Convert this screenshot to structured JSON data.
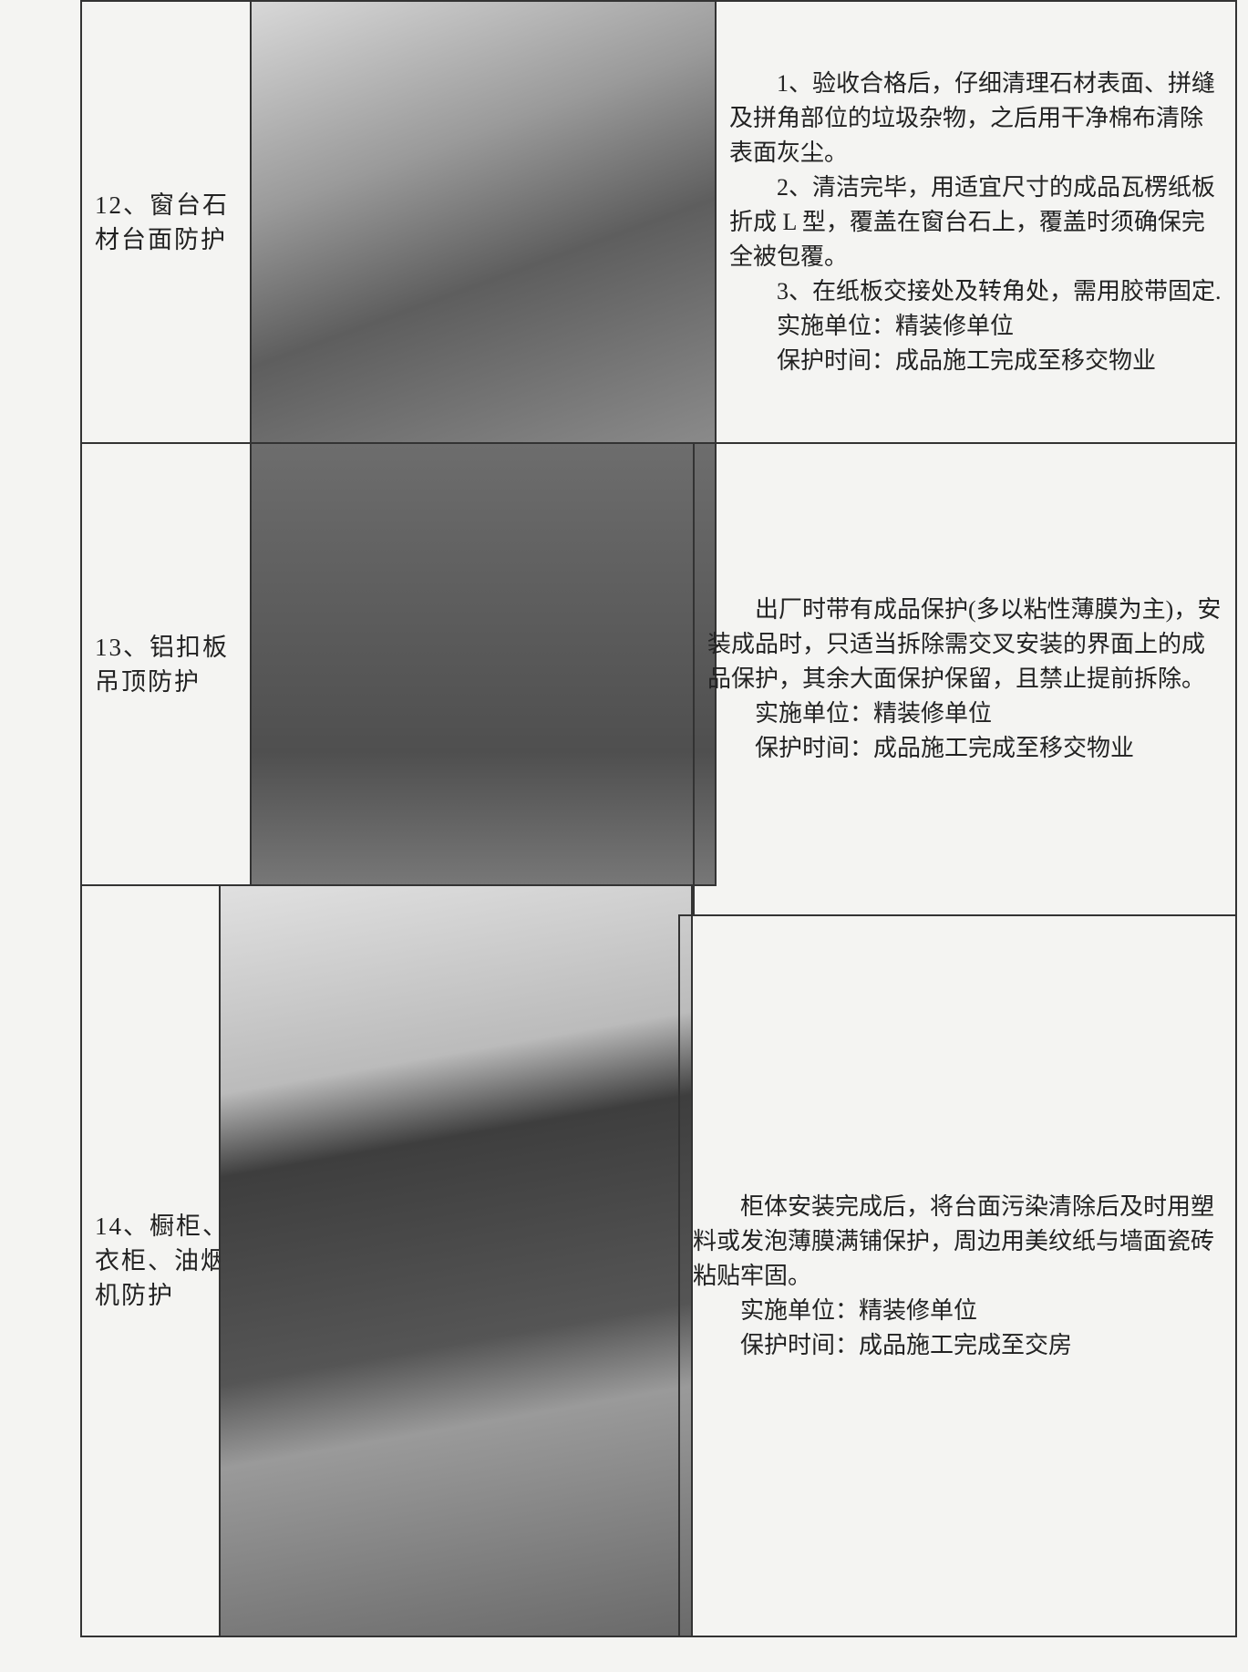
{
  "table": {
    "rows": [
      {
        "label": "12、窗台石材台面防护",
        "paragraphs": [
          "1、验收合格后，仔细清理石材表面、拼缝及拼角部位的垃圾杂物，之后用干净棉布清除表面灰尘。",
          "2、清洁完毕，用适宜尺寸的成品瓦楞纸板折成 L 型，覆盖在窗台石上，覆盖时须确保完全被包覆。",
          "3、在纸板交接处及转角处，需用胶带固定.",
          "实施单位：精装修单位",
          "保护时间：成品施工完成至移交物业"
        ]
      },
      {
        "label": "13、铝扣板吊顶防护",
        "paragraphs": [
          "出厂时带有成品保护(多以粘性薄膜为主)，安装成品时，只适当拆除需交叉安装的界面上的成品保护，其余大面保护保留，且禁止提前拆除。",
          "实施单位：精装修单位",
          "保护时间：成品施工完成至移交物业"
        ]
      },
      {
        "label": "14、橱柜、衣柜、油烟机防护",
        "paragraphs": [
          "柜体安装完成后，将台面污染清除后及时用塑料或发泡薄膜满铺保护，周边用美纹纸与墙面瓷砖粘贴牢固。",
          "实施单位：精装修单位",
          "保护时间：成品施工完成至交房"
        ]
      }
    ]
  }
}
